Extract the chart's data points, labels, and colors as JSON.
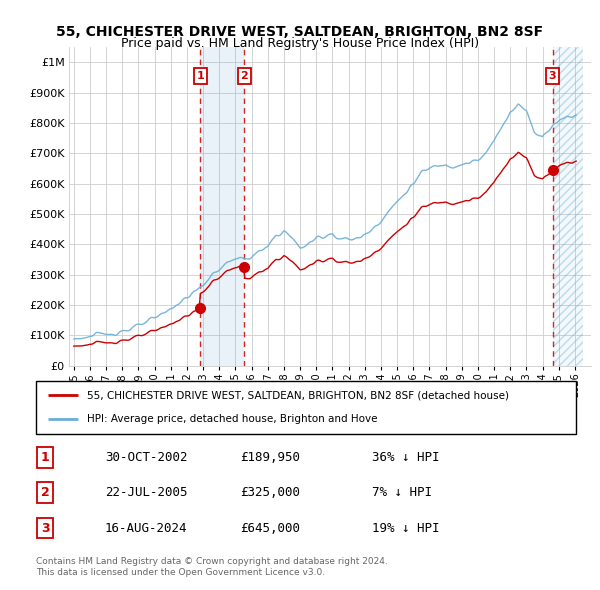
{
  "title": "55, CHICHESTER DRIVE WEST, SALTDEAN, BRIGHTON, BN2 8SF",
  "subtitle": "Price paid vs. HM Land Registry's House Price Index (HPI)",
  "ylim": [
    0,
    1050000
  ],
  "yticks": [
    0,
    100000,
    200000,
    300000,
    400000,
    500000,
    600000,
    700000,
    800000,
    900000,
    1000000
  ],
  "ytick_labels": [
    "£0",
    "£100K",
    "£200K",
    "£300K",
    "£400K",
    "£500K",
    "£600K",
    "£700K",
    "£800K",
    "£900K",
    "£1M"
  ],
  "hpi_color": "#6baed6",
  "price_color": "#cc0000",
  "background_color": "#ffffff",
  "grid_color": "#cccccc",
  "sale1_x": 2002.83,
  "sale1_y": 189950,
  "sale1_label": "1",
  "sale1_date": "30-OCT-2002",
  "sale1_price": "£189,950",
  "sale1_hpi": "36% ↓ HPI",
  "sale2_x": 2005.55,
  "sale2_y": 325000,
  "sale2_label": "2",
  "sale2_date": "22-JUL-2005",
  "sale2_price": "£325,000",
  "sale2_hpi": "7% ↓ HPI",
  "sale3_x": 2024.62,
  "sale3_y": 645000,
  "sale3_label": "3",
  "sale3_date": "16-AUG-2024",
  "sale3_price": "£645,000",
  "sale3_hpi": "19% ↓ HPI",
  "legend_line1": "55, CHICHESTER DRIVE WEST, SALTDEAN, BRIGHTON, BN2 8SF (detached house)",
  "legend_line2": "HPI: Average price, detached house, Brighton and Hove",
  "footnote1": "Contains HM Land Registry data © Crown copyright and database right 2024.",
  "footnote2": "This data is licensed under the Open Government Licence v3.0.",
  "shade1_x1": 2002.83,
  "shade1_x2": 2005.55,
  "shade2_x1": 2024.62,
  "shade2_x2": 2026.5,
  "xlim_left": 1994.7,
  "xlim_right": 2027.0
}
